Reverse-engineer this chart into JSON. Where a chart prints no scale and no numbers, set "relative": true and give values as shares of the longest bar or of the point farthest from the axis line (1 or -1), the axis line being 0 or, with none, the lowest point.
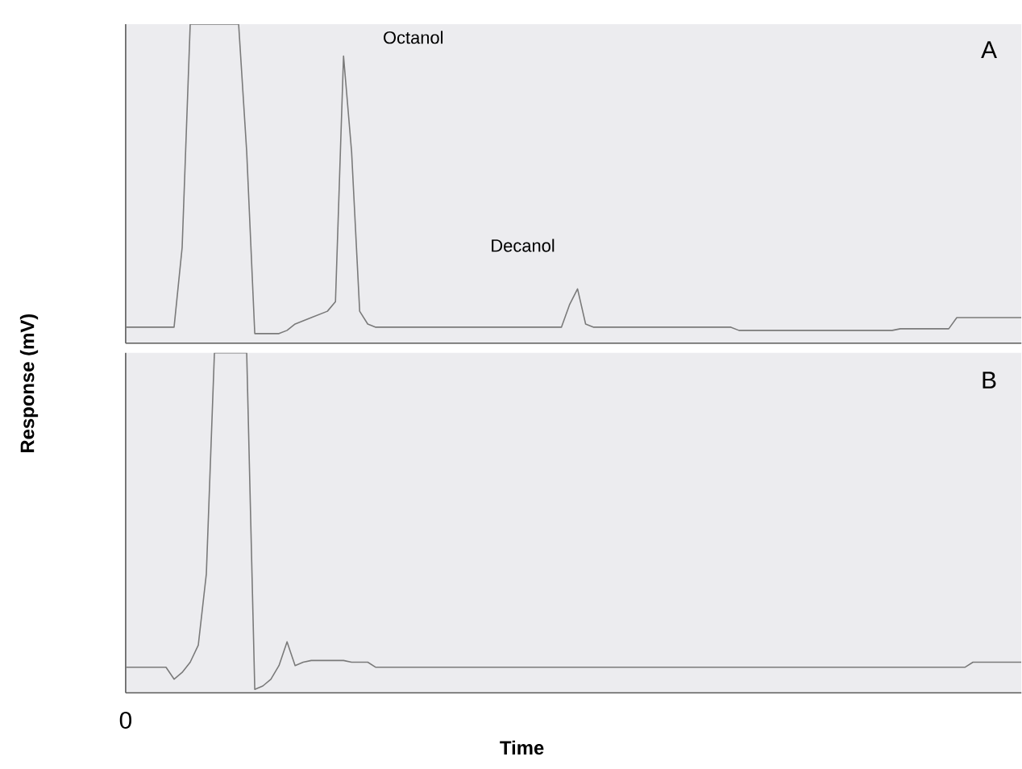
{
  "chart_data": [
    {
      "type": "line",
      "relative": true,
      "ylabel": "Response (mV)",
      "color": "#7a7a7a",
      "annotations": [
        "A",
        "Octanol",
        "Decanol"
      ],
      "categories": [
        null,
        null,
        null,
        null,
        null,
        null,
        null,
        null,
        null,
        null,
        null,
        null,
        null,
        null,
        null,
        null,
        null,
        null,
        null,
        null,
        null,
        null,
        null,
        null,
        null,
        null,
        null,
        null,
        null,
        null,
        null,
        null,
        null,
        null,
        null,
        null,
        null,
        null,
        null,
        null,
        null,
        null,
        null,
        null,
        null,
        null,
        null,
        null,
        null,
        null,
        null,
        null,
        null,
        null,
        null,
        null,
        null,
        null,
        null,
        null,
        null,
        null,
        null,
        null,
        null,
        null,
        null,
        null,
        null,
        null,
        null,
        null,
        null,
        null,
        null,
        null,
        null,
        null,
        null,
        null,
        null,
        null,
        null,
        null,
        null,
        null,
        null,
        null,
        null,
        null,
        null,
        null,
        null,
        null,
        null,
        null,
        null,
        null,
        null,
        null,
        null,
        null,
        null,
        null,
        null,
        null,
        null,
        null,
        null,
        null,
        null,
        null
      ],
      "values": [
        0.05,
        0.05,
        0.05,
        0.05,
        0.05,
        0.05,
        0.05,
        0.3,
        1,
        1,
        1,
        1,
        1,
        1,
        1,
        0.6,
        0.03,
        0.03,
        0.03,
        0.03,
        0.04,
        0.06,
        0.07,
        0.08,
        0.09,
        0.1,
        0.13,
        0.9,
        0.6,
        0.1,
        0.06,
        0.05,
        0.05,
        0.05,
        0.05,
        0.05,
        0.05,
        0.05,
        0.05,
        0.05,
        0.05,
        0.05,
        0.05,
        0.05,
        0.05,
        0.05,
        0.05,
        0.05,
        0.05,
        0.05,
        0.05,
        0.05,
        0.05,
        0.05,
        0.05,
        0.12,
        0.17,
        0.06,
        0.05,
        0.05,
        0.05,
        0.05,
        0.05,
        0.05,
        0.05,
        0.05,
        0.05,
        0.05,
        0.05,
        0.05,
        0.05,
        0.05,
        0.05,
        0.05,
        0.05,
        0.05,
        0.04,
        0.04,
        0.04,
        0.04,
        0.04,
        0.04,
        0.04,
        0.04,
        0.04,
        0.04,
        0.04,
        0.04,
        0.04,
        0.04,
        0.04,
        0.04,
        0.04,
        0.04,
        0.04,
        0.04,
        0.045,
        0.045,
        0.045,
        0.045,
        0.045,
        0.045,
        0.045,
        0.08,
        0.08,
        0.08,
        0.08,
        0.08,
        0.08,
        0.08,
        0.08,
        0.08
      ]
    },
    {
      "type": "line",
      "relative": true,
      "xlabel": "Time",
      "color": "#7a7a7a",
      "annotations": [
        "B",
        "0"
      ],
      "categories": [
        null,
        null,
        null,
        null,
        null,
        null,
        null,
        null,
        null,
        null,
        null,
        null,
        null,
        null,
        null,
        null,
        null,
        null,
        null,
        null,
        null,
        null,
        null,
        null,
        null,
        null,
        null,
        null,
        null,
        null,
        null,
        null,
        null,
        null,
        null,
        null,
        null,
        null,
        null,
        null,
        null,
        null,
        null,
        null,
        null,
        null,
        null,
        null,
        null,
        null,
        null,
        null,
        null,
        null,
        null,
        null,
        null,
        null,
        null,
        null,
        null,
        null,
        null,
        null,
        null,
        null,
        null,
        null,
        null,
        null,
        null,
        null,
        null,
        null,
        null,
        null,
        null,
        null,
        null,
        null,
        null,
        null,
        null,
        null,
        null,
        null,
        null,
        null,
        null,
        null,
        null,
        null,
        null,
        null,
        null,
        null,
        null,
        null,
        null,
        null,
        null,
        null,
        null,
        null,
        null,
        null,
        null,
        null,
        null,
        null,
        null,
        null
      ],
      "values": [
        0.075,
        0.075,
        0.075,
        0.075,
        0.075,
        0.075,
        0.04,
        0.06,
        0.09,
        0.14,
        0.35,
        1,
        1,
        1,
        1,
        1,
        0.01,
        0.02,
        0.04,
        0.08,
        0.15,
        0.08,
        0.09,
        0.095,
        0.095,
        0.095,
        0.095,
        0.095,
        0.09,
        0.09,
        0.09,
        0.075,
        0.075,
        0.075,
        0.075,
        0.075,
        0.075,
        0.075,
        0.075,
        0.075,
        0.075,
        0.075,
        0.075,
        0.075,
        0.075,
        0.075,
        0.075,
        0.075,
        0.075,
        0.075,
        0.075,
        0.075,
        0.075,
        0.075,
        0.075,
        0.075,
        0.075,
        0.075,
        0.075,
        0.075,
        0.075,
        0.075,
        0.075,
        0.075,
        0.075,
        0.075,
        0.075,
        0.075,
        0.075,
        0.075,
        0.075,
        0.075,
        0.075,
        0.075,
        0.075,
        0.075,
        0.075,
        0.075,
        0.075,
        0.075,
        0.075,
        0.075,
        0.075,
        0.075,
        0.075,
        0.075,
        0.075,
        0.075,
        0.075,
        0.075,
        0.075,
        0.075,
        0.075,
        0.075,
        0.075,
        0.075,
        0.075,
        0.075,
        0.075,
        0.075,
        0.075,
        0.075,
        0.075,
        0.075,
        0.075,
        0.09,
        0.09,
        0.09,
        0.09,
        0.09,
        0.09,
        0.09
      ]
    }
  ]
}
